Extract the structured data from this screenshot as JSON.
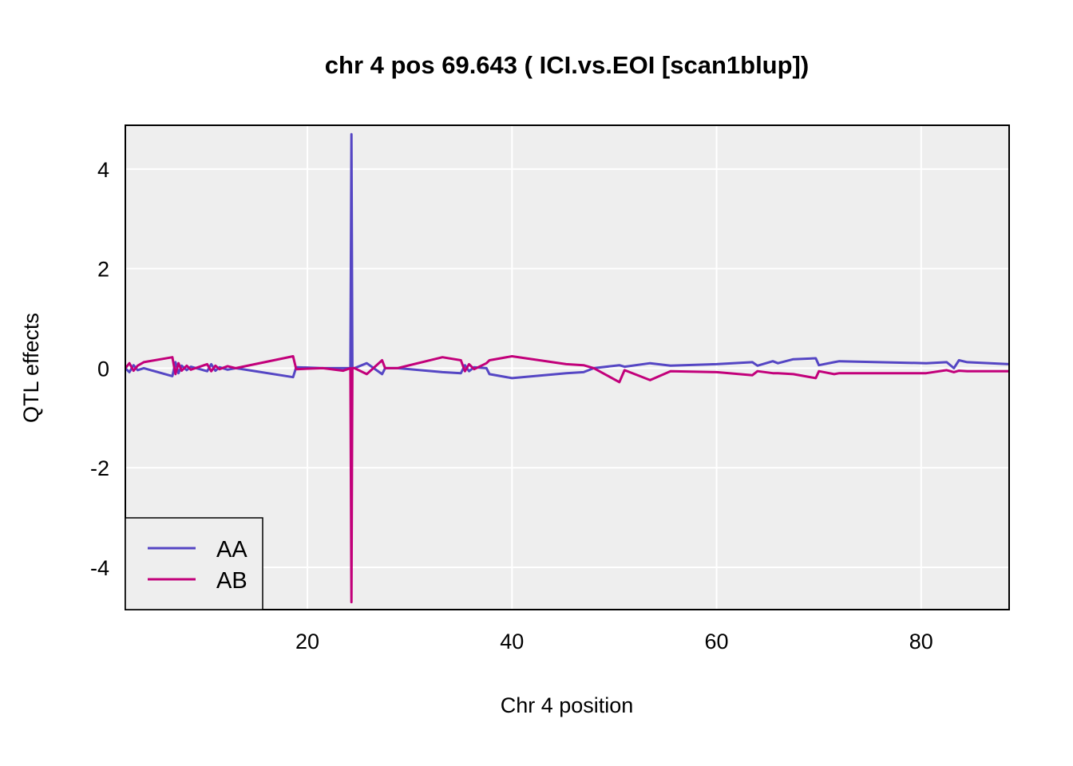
{
  "chart_data": {
    "type": "line",
    "title": "chr 4 pos 69.643 ( ICI.vs.EOI  [scan1blup])",
    "xlabel": "Chr 4 position",
    "ylabel": "QTL effects",
    "xlim": [
      2.2,
      88.6
    ],
    "ylim": [
      -4.85,
      4.88
    ],
    "x_ticks": [
      20,
      40,
      60,
      80
    ],
    "y_ticks": [
      -4,
      -2,
      0,
      2,
      4
    ],
    "grid": true,
    "background": "#eeeeee",
    "legend_position": "bottom-left",
    "series": [
      {
        "name": "AA",
        "color": "#5546c4",
        "x": [
          2.2,
          2.6,
          3.0,
          3.4,
          4.0,
          6.8,
          7.1,
          7.4,
          7.7,
          8.2,
          8.6,
          10.2,
          10.6,
          11.0,
          11.4,
          12.2,
          13.0,
          18.6,
          18.9,
          21.5,
          23.5,
          24.2,
          24.3,
          24.4,
          24.6,
          25.8,
          27.3,
          27.6,
          28.8,
          33.2,
          35.0,
          35.4,
          35.8,
          36.3,
          37.5,
          37.8,
          40.0,
          45.3,
          47.0,
          48.0,
          50.5,
          51.0,
          53.5,
          55.5,
          60.0,
          63.5,
          64.0,
          65.5,
          66.0,
          67.5,
          69.7,
          70.0,
          71.5,
          72.0,
          80.5,
          82.5,
          83.2,
          83.7,
          84.5,
          88.6
        ],
        "values": [
          0.0,
          -0.08,
          0.06,
          -0.04,
          0.0,
          -0.16,
          0.12,
          -0.1,
          0.05,
          -0.04,
          0.03,
          -0.06,
          0.08,
          -0.05,
          0.02,
          -0.03,
          0.0,
          -0.18,
          0.02,
          0.0,
          0.0,
          0.0,
          4.7,
          0.0,
          0.0,
          0.1,
          -0.12,
          0.0,
          0.0,
          -0.08,
          -0.1,
          0.06,
          -0.06,
          0.02,
          0.0,
          -0.12,
          -0.2,
          -0.1,
          -0.08,
          0.0,
          0.06,
          0.03,
          0.1,
          0.05,
          0.08,
          0.12,
          0.05,
          0.14,
          0.1,
          0.18,
          0.2,
          0.06,
          0.12,
          0.14,
          0.1,
          0.12,
          0.0,
          0.16,
          0.12,
          0.08
        ]
      },
      {
        "name": "AB",
        "color": "#c2007a",
        "x": [
          2.2,
          2.6,
          3.0,
          3.4,
          4.0,
          6.8,
          7.1,
          7.4,
          7.7,
          8.2,
          8.6,
          10.2,
          10.6,
          11.0,
          11.4,
          12.2,
          13.0,
          18.6,
          18.9,
          21.5,
          23.5,
          24.2,
          24.3,
          24.4,
          24.6,
          25.8,
          27.3,
          27.6,
          28.8,
          33.2,
          35.0,
          35.4,
          35.8,
          36.3,
          37.5,
          37.8,
          40.0,
          45.3,
          47.0,
          48.0,
          50.5,
          51.0,
          53.5,
          55.5,
          60.0,
          63.5,
          64.0,
          65.5,
          66.0,
          67.5,
          69.7,
          70.0,
          71.5,
          72.0,
          80.5,
          82.5,
          83.2,
          83.7,
          84.5,
          88.6
        ],
        "values": [
          0.0,
          0.1,
          -0.05,
          0.05,
          0.12,
          0.22,
          -0.12,
          0.1,
          -0.05,
          0.05,
          -0.03,
          0.08,
          -0.06,
          0.05,
          -0.02,
          0.04,
          0.0,
          0.24,
          -0.02,
          0.0,
          -0.05,
          0.0,
          -4.7,
          0.0,
          0.0,
          -0.12,
          0.16,
          0.0,
          0.0,
          0.22,
          0.16,
          -0.06,
          0.08,
          -0.02,
          0.1,
          0.16,
          0.24,
          0.08,
          0.06,
          0.0,
          -0.28,
          -0.04,
          -0.24,
          -0.06,
          -0.08,
          -0.14,
          -0.06,
          -0.1,
          -0.1,
          -0.12,
          -0.2,
          -0.06,
          -0.12,
          -0.1,
          -0.1,
          -0.04,
          -0.08,
          -0.05,
          -0.06,
          -0.06
        ]
      }
    ]
  }
}
